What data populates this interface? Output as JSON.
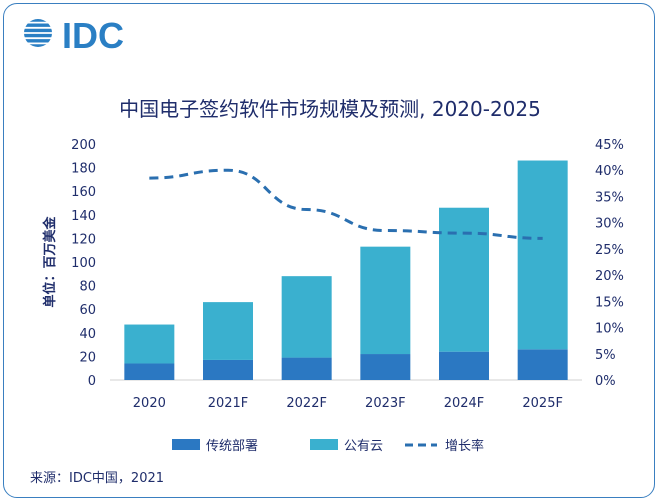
{
  "brand": {
    "logo_text": "IDC",
    "logo_color": "#2a7fc4"
  },
  "source_note": "来源：IDC中国，2021",
  "chart_data": {
    "type": "bar",
    "stacked": true,
    "title": "中国电子签约软件市场规模及预测, 2020-2025",
    "ylabel": "单位：百万美金",
    "categories": [
      "2020",
      "2021F",
      "2022F",
      "2023F",
      "2024F",
      "2025F"
    ],
    "ylim": [
      0,
      200
    ],
    "y_ticks": [
      "0",
      "20",
      "40",
      "60",
      "80",
      "100",
      "120",
      "140",
      "160",
      "180",
      "200"
    ],
    "y2lim": [
      0,
      45
    ],
    "y2_ticks": [
      "0%",
      "5%",
      "10%",
      "15%",
      "20%",
      "25%",
      "30%",
      "35%",
      "40%",
      "45%"
    ],
    "grid": false,
    "legend_position": "bottom",
    "series": [
      {
        "name": "传统部署",
        "type": "bar",
        "color": "#2b78c2",
        "values": [
          14,
          17,
          19,
          22,
          24,
          26
        ]
      },
      {
        "name": "公有云",
        "type": "bar",
        "color": "#3ab0cf",
        "values": [
          33,
          49,
          69,
          91,
          122,
          160
        ]
      },
      {
        "name": "增长率",
        "type": "line",
        "axis": "right",
        "style": "dashed",
        "color": "#2a6fb0",
        "values": [
          38.5,
          40.0,
          32.5,
          28.5,
          28.0,
          27.0
        ]
      }
    ]
  }
}
